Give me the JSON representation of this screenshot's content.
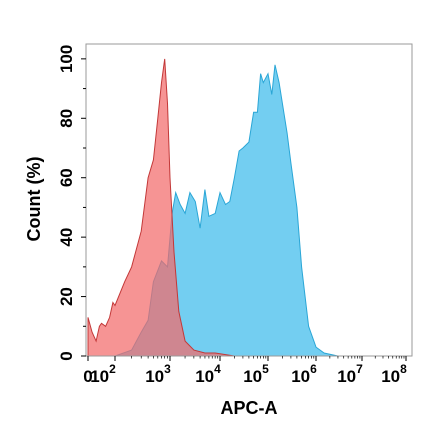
{
  "chart_data": {
    "type": "area",
    "xlabel": "APC-A",
    "ylabel": "Count  (%)",
    "x_scale": "log",
    "y_range": [
      0,
      105
    ],
    "x_ticks": [
      {
        "base": "0",
        "exp": ""
      },
      {
        "base": "10",
        "exp": "2"
      },
      {
        "base": "10",
        "exp": "3"
      },
      {
        "base": "10",
        "exp": "4"
      },
      {
        "base": "10",
        "exp": "5"
      },
      {
        "base": "10",
        "exp": "6"
      },
      {
        "base": "10",
        "exp": "7"
      },
      {
        "base": "10",
        "exp": "8"
      }
    ],
    "y_ticks": [
      "0",
      "20",
      "40",
      "60",
      "80",
      "100"
    ],
    "series": [
      {
        "color": "#f26b6b",
        "points": [
          [
            1,
            13
          ],
          [
            2,
            8
          ],
          [
            4,
            5
          ],
          [
            7,
            10
          ],
          [
            10,
            11
          ],
          [
            20,
            10
          ],
          [
            40,
            13
          ],
          [
            70,
            18
          ],
          [
            100,
            17
          ],
          [
            150,
            25
          ],
          [
            200,
            30
          ],
          [
            300,
            42
          ],
          [
            400,
            60
          ],
          [
            500,
            66
          ],
          [
            600,
            80
          ],
          [
            700,
            92
          ],
          [
            800,
            100
          ],
          [
            900,
            85
          ],
          [
            1000,
            60
          ],
          [
            1200,
            35
          ],
          [
            1500,
            15
          ],
          [
            2000,
            5
          ],
          [
            3000,
            2
          ],
          [
            5000,
            1
          ],
          [
            8000,
            1
          ],
          [
            20000,
            0
          ],
          [
            100000,
            0
          ]
        ]
      },
      {
        "color": "#5bc6ee",
        "points": [
          [
            1,
            0
          ],
          [
            100,
            0
          ],
          [
            200,
            2
          ],
          [
            300,
            8
          ],
          [
            400,
            12
          ],
          [
            500,
            25
          ],
          [
            700,
            32
          ],
          [
            900,
            30
          ],
          [
            1100,
            48
          ],
          [
            1300,
            55
          ],
          [
            1600,
            51
          ],
          [
            2000,
            48
          ],
          [
            2500,
            55
          ],
          [
            3200,
            52
          ],
          [
            4000,
            43
          ],
          [
            5000,
            56
          ],
          [
            6000,
            47
          ],
          [
            8000,
            48
          ],
          [
            10000,
            55
          ],
          [
            13000,
            51
          ],
          [
            16000,
            52
          ],
          [
            20000,
            60
          ],
          [
            25000,
            69
          ],
          [
            30000,
            70
          ],
          [
            40000,
            72
          ],
          [
            50000,
            82
          ],
          [
            60000,
            82
          ],
          [
            70000,
            95
          ],
          [
            80000,
            92
          ],
          [
            100000,
            95
          ],
          [
            120000,
            88
          ],
          [
            140000,
            98
          ],
          [
            170000,
            92
          ],
          [
            200000,
            85
          ],
          [
            250000,
            75
          ],
          [
            300000,
            65
          ],
          [
            400000,
            50
          ],
          [
            500000,
            30
          ],
          [
            700000,
            10
          ],
          [
            1000000,
            3
          ],
          [
            1500000,
            1
          ],
          [
            3000000,
            0
          ],
          [
            10000000,
            0
          ]
        ]
      }
    ]
  }
}
